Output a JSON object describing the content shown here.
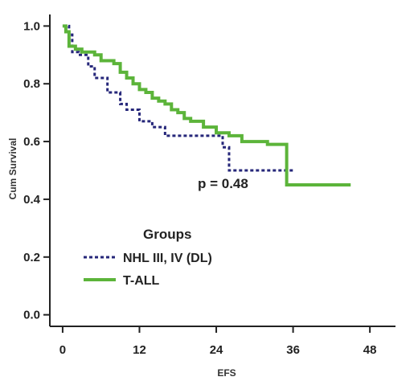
{
  "chart_data": {
    "type": "line",
    "title": "",
    "xlabel": "EFS",
    "ylabel": "Cum Survival",
    "xlim": [
      -2,
      52
    ],
    "ylim": [
      -0.04,
      1.04
    ],
    "x_ticks": [
      0,
      12,
      24,
      36,
      48
    ],
    "x_tick_labels": [
      "0",
      "12",
      "24",
      "36",
      "48"
    ],
    "y_ticks": [
      0.0,
      0.2,
      0.4,
      0.6,
      0.8,
      1.0
    ],
    "y_tick_labels": [
      "0.0",
      "0.2",
      "0.4",
      "0.6",
      "0.8",
      "1.0"
    ],
    "grid": false,
    "legend": {
      "title": "Groups",
      "placement": "bottom-left"
    },
    "annotation": "p = 0.48",
    "series": [
      {
        "name": "NHL III, IV (DL)",
        "color": "#26277a",
        "style": "dotted",
        "step": true,
        "x": [
          0,
          1,
          1.5,
          2.5,
          4,
          5,
          7,
          8,
          9,
          10,
          12,
          14,
          16,
          20,
          25,
          26,
          30,
          36
        ],
        "y": [
          1.0,
          0.97,
          0.91,
          0.9,
          0.86,
          0.82,
          0.77,
          0.77,
          0.73,
          0.71,
          0.67,
          0.65,
          0.62,
          0.62,
          0.58,
          0.5,
          0.5,
          0.5
        ]
      },
      {
        "name": "T-ALL",
        "color": "#5cb43a",
        "style": "solid",
        "step": true,
        "x": [
          0,
          0.5,
          1,
          2,
          3,
          5,
          6,
          8,
          9,
          10,
          11,
          12,
          13,
          14,
          15,
          16,
          17,
          18,
          19,
          20,
          22,
          24,
          26,
          28,
          32,
          34,
          35,
          40,
          45
        ],
        "y": [
          1.0,
          0.98,
          0.93,
          0.92,
          0.91,
          0.9,
          0.88,
          0.87,
          0.84,
          0.82,
          0.8,
          0.78,
          0.77,
          0.75,
          0.74,
          0.73,
          0.71,
          0.7,
          0.68,
          0.67,
          0.65,
          0.63,
          0.62,
          0.6,
          0.59,
          0.59,
          0.45,
          0.45,
          0.45
        ]
      }
    ]
  }
}
